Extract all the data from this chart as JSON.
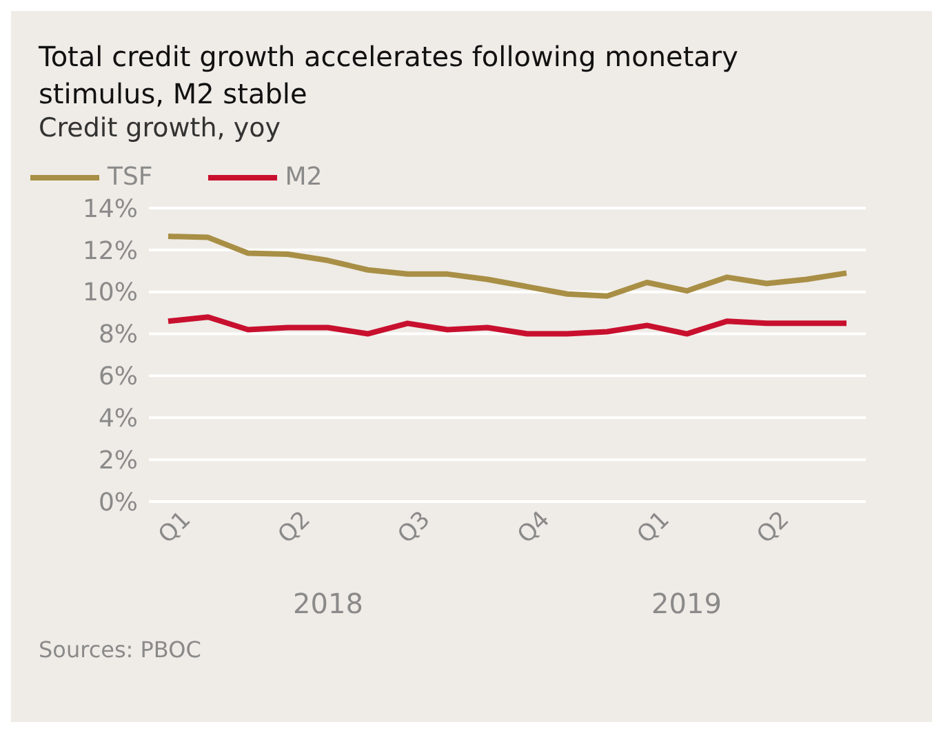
{
  "chart_data": {
    "type": "line",
    "title": "Total credit growth accelerates following monetary stimulus, M2 stable",
    "subtitle": "Credit growth, yoy",
    "categories": [
      "Q1",
      null,
      null,
      "Q2",
      null,
      null,
      "Q3",
      null,
      null,
      "Q4",
      null,
      null,
      "Q1",
      null,
      null,
      "Q2",
      null,
      null
    ],
    "series": [
      {
        "name": "TSF",
        "color": "#a88f45",
        "values": [
          12.65,
          12.6,
          11.85,
          11.8,
          11.5,
          11.05,
          10.85,
          10.85,
          10.6,
          10.25,
          9.9,
          9.8,
          10.45,
          10.05,
          10.7,
          10.4,
          10.6,
          10.9
        ]
      },
      {
        "name": "M2",
        "color": "#c8102e",
        "values": [
          8.6,
          8.8,
          8.2,
          8.3,
          8.3,
          8.0,
          8.5,
          8.2,
          8.3,
          8.0,
          8.0,
          8.1,
          8.4,
          8.0,
          8.6,
          8.5,
          8.5,
          8.5
        ]
      }
    ],
    "ylim": [
      0,
      14
    ],
    "yticks": [
      {
        "value": 0,
        "label": "0%"
      },
      {
        "value": 2,
        "label": "2%"
      },
      {
        "value": 4,
        "label": "4%"
      },
      {
        "value": 6,
        "label": "6%"
      },
      {
        "value": 8,
        "label": "8%"
      },
      {
        "value": 10,
        "label": "10%"
      },
      {
        "value": 12,
        "label": "12%"
      },
      {
        "value": 14,
        "label": "14%"
      }
    ],
    "grid": "y",
    "legend": "top left",
    "marker": "none",
    "line_style": "solid",
    "annotations": [
      "2018",
      "2019",
      "Sources: PBOC"
    ]
  }
}
